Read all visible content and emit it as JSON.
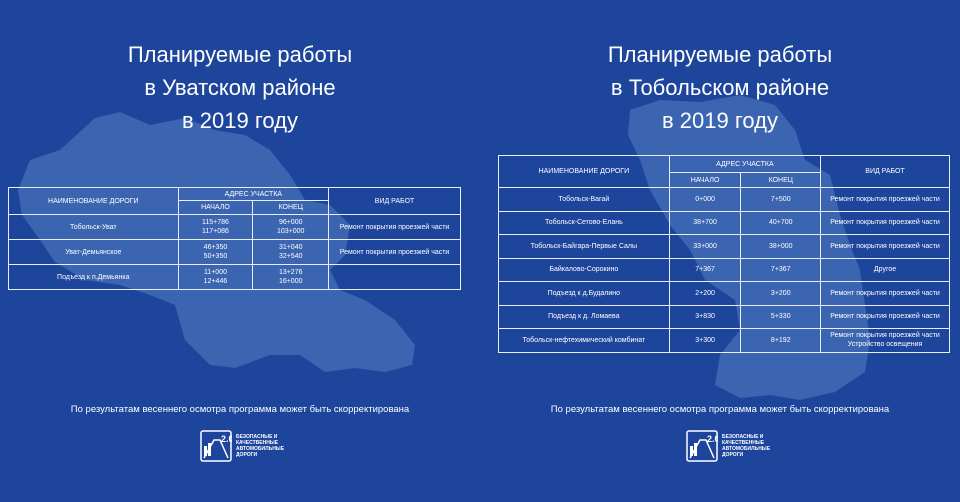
{
  "left": {
    "title_lines": [
      "Планируемые работы",
      "в Уватском районе",
      "в 2019 году"
    ],
    "table": {
      "header": {
        "road": "НАИМЕНОВАНИЕ ДОРОГИ",
        "address": "АДРЕС УЧАСТКА",
        "start": "НАЧАЛО",
        "end": "КОНЕЦ",
        "work": "ВИД РАБОТ"
      },
      "rows": [
        {
          "road": "Тобольск-Уват",
          "start": [
            "115+786",
            "117+086"
          ],
          "end": [
            "96+000",
            "103+000"
          ]
        },
        {
          "road": "Уват-Демьянское",
          "start": [
            "46+350",
            "50+350"
          ],
          "end": [
            "31+040",
            "32+540"
          ]
        },
        {
          "road": "Подъезд к п.Демьянка",
          "start": [
            "11+000",
            "12+446"
          ],
          "end": [
            "13+276",
            "16+000"
          ]
        }
      ],
      "work_merged": "Ремонт покрытия проезжей части",
      "work_row2": "Ремонт покрытия проезжей части"
    },
    "note": "По результатам весеннего осмотра программа может быть скорректирована"
  },
  "right": {
    "title_lines": [
      "Планируемые работы",
      "в Тобольском районе",
      "в 2019 году"
    ],
    "table": {
      "header": {
        "road": "НАИМЕНОВАНИЕ ДОРОГИ",
        "address": "АДРЕС УЧАСТКА",
        "start": "НАЧАЛО",
        "end": "КОНЕЦ",
        "work": "ВИД РАБОТ"
      },
      "rows": [
        {
          "road": "Тобольск-Вагай",
          "start": "0+000",
          "end": "7+500",
          "work": [
            "Ремонт покрытия проезжей части"
          ]
        },
        {
          "road": "Тобольск-Сетово-Елань",
          "start": "38+700",
          "end": "40+700",
          "work": [
            "Ремонт покрытия проезжей части"
          ]
        },
        {
          "road": "Тобольск-Байгара-Первые Салы",
          "start": "33+000",
          "end": "38+000",
          "work": [
            "Ремонт покрытия проезжей части"
          ]
        },
        {
          "road": "Байкалово-Сорокино",
          "start": "7+367",
          "end": "7+367",
          "work": [
            "Другое"
          ]
        },
        {
          "road": "Подъезд к д.Будалино",
          "start": "2+200",
          "end": "3+200",
          "work": [
            "Ремонт покрытия проезжей части"
          ]
        },
        {
          "road": "Подъезд к д. Ломаева",
          "start": "3+830",
          "end": "5+330",
          "work": [
            "Ремонт покрытия проезжей части"
          ]
        },
        {
          "road": "Тобольск-нефтехимический комбинат",
          "start": "3+300",
          "end": "8+192",
          "work": [
            "Ремонт покрытия проезжей части",
            "Устройство освещения"
          ]
        }
      ]
    },
    "note": "По результатам весеннего осмотра программа может быть скорректирована"
  },
  "logo": {
    "mark": "2.0",
    "text_lines": [
      "БЕЗОПАСНЫЕ И",
      "КАЧЕСТВЕННЫЕ",
      "АВТОМОБИЛЬНЫЕ",
      "ДОРОГИ"
    ]
  },
  "colors": {
    "background": "#1d459b",
    "map_shape": "#4670b8",
    "table_border": "#e9eef8"
  }
}
